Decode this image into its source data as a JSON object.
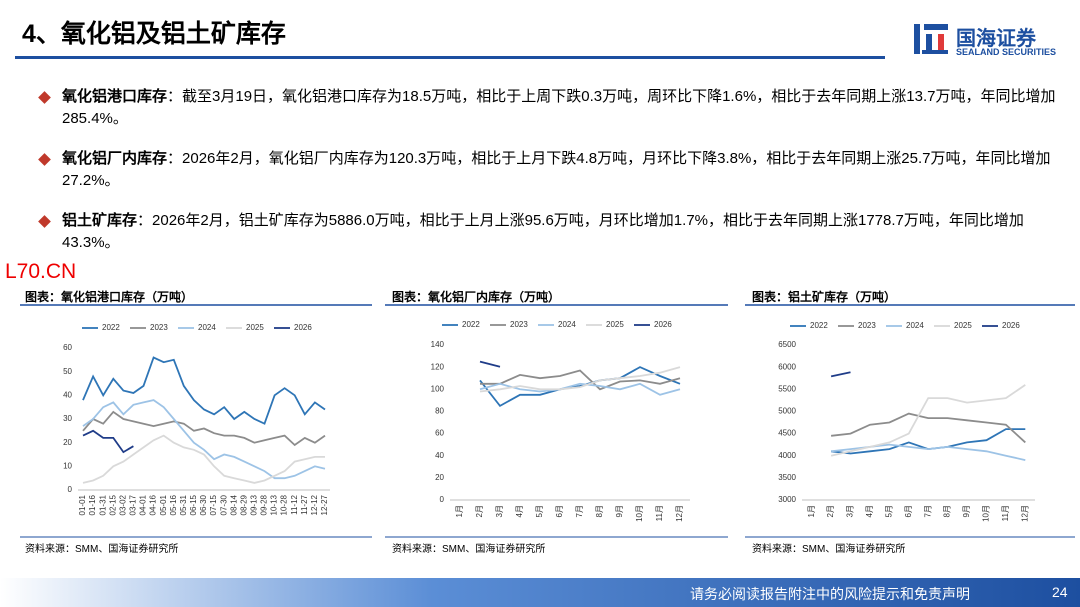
{
  "header": {
    "title": "4、氧化铝及铝土矿库存",
    "logo_cn": "国海证券",
    "logo_en": "SEALAND SECURITIES"
  },
  "bullets": [
    {
      "label": "氧化铝港口库存",
      "text": "：截至3月19日，氧化铝港口库存为18.5万吨，相比于上周下跌0.3万吨，周环比下降1.6%，相比于去年同期上涨13.7万吨，年同比增加285.4%。"
    },
    {
      "label": "氧化铝厂内库存",
      "text": "：2026年2月，氧化铝厂内库存为120.3万吨，相比于上月下跌4.8万吨，月环比下降3.8%，相比于去年同期上涨25.7万吨，年同比增加27.2%。"
    },
    {
      "label": "铝土矿库存",
      "text": "：2026年2月，铝土矿库存为5886.0万吨，相比于上月上涨95.6万吨，月环比增加1.7%，相比于去年同期上涨1778.7万吨，年同比增加43.3%。"
    }
  ],
  "watermark": "L70.CN",
  "footer": {
    "disclaimer": "请务必阅读报告附注中的风险提示和免责声明",
    "page": "24"
  },
  "chart_data": [
    {
      "type": "line",
      "title": "图表：氧化铝港口库存（万吨）",
      "source": "资料来源：SMM、国海证券研究所",
      "categories": [
        "01-01",
        "01-16",
        "01-31",
        "02-15",
        "03-02",
        "03-17",
        "04-01",
        "04-16",
        "05-01",
        "05-16",
        "05-31",
        "06-15",
        "06-30",
        "07-15",
        "07-30",
        "08-14",
        "08-29",
        "09-13",
        "09-28",
        "10-13",
        "10-28",
        "11-12",
        "11-27",
        "12-12",
        "12-27"
      ],
      "ylim": [
        0,
        60
      ],
      "yticks": [
        0,
        10,
        20,
        30,
        40,
        50,
        60
      ],
      "series": [
        {
          "name": "2022",
          "color": "#2e75b6",
          "values": [
            38,
            48,
            40,
            47,
            42,
            41,
            44,
            56,
            54,
            55,
            44,
            38,
            34,
            32,
            35,
            30,
            33,
            30,
            28,
            40,
            43,
            40,
            32,
            37,
            34
          ]
        },
        {
          "name": "2023",
          "color": "#8c8c8c",
          "values": [
            25,
            30,
            28,
            33,
            30,
            29,
            28,
            27,
            28,
            29,
            28,
            25,
            26,
            24,
            23,
            23,
            22,
            20,
            21,
            22,
            23,
            19,
            22,
            20,
            23
          ]
        },
        {
          "name": "2024",
          "color": "#9dc3e6",
          "values": [
            27,
            30,
            35,
            37,
            32,
            36,
            37,
            38,
            35,
            30,
            25,
            20,
            17,
            13,
            15,
            14,
            12,
            10,
            8,
            5,
            5,
            6,
            8,
            10,
            9
          ]
        },
        {
          "name": "2025",
          "color": "#d9d9d9",
          "values": [
            3,
            4,
            6,
            10,
            12,
            15,
            18,
            21,
            23,
            20,
            18,
            17,
            15,
            10,
            6,
            5,
            4,
            3,
            4,
            6,
            8,
            12,
            13,
            14,
            14
          ]
        },
        {
          "name": "2026",
          "color": "#1f3c88",
          "values": [
            23,
            25,
            22,
            22,
            16,
            18.5,
            null,
            null,
            null,
            null,
            null,
            null,
            null,
            null,
            null,
            null,
            null,
            null,
            null,
            null,
            null,
            null,
            null,
            null,
            null
          ]
        }
      ]
    },
    {
      "type": "line",
      "title": "图表：氧化铝厂内库存（万吨）",
      "source": "资料来源：SMM、国海证券研究所",
      "categories": [
        "1月",
        "2月",
        "3月",
        "4月",
        "5月",
        "6月",
        "7月",
        "8月",
        "9月",
        "10月",
        "11月",
        "12月"
      ],
      "ylim": [
        0,
        140
      ],
      "yticks": [
        0,
        20,
        40,
        60,
        80,
        100,
        120,
        140
      ],
      "series": [
        {
          "name": "2022",
          "color": "#2e75b6",
          "values": [
            null,
            108,
            85,
            95,
            95,
            100,
            103,
            108,
            110,
            120,
            112,
            105
          ]
        },
        {
          "name": "2023",
          "color": "#8c8c8c",
          "values": [
            null,
            105,
            105,
            113,
            110,
            112,
            117,
            100,
            107,
            108,
            105,
            110
          ]
        },
        {
          "name": "2024",
          "color": "#9dc3e6",
          "values": [
            null,
            100,
            105,
            100,
            98,
            100,
            105,
            103,
            100,
            105,
            95,
            100
          ]
        },
        {
          "name": "2025",
          "color": "#d9d9d9",
          "values": [
            null,
            98,
            100,
            103,
            100,
            100,
            102,
            108,
            110,
            112,
            115,
            120
          ]
        },
        {
          "name": "2026",
          "color": "#1f3c88",
          "values": [
            null,
            125,
            120.3,
            null,
            null,
            null,
            null,
            null,
            null,
            null,
            null,
            null
          ]
        }
      ]
    },
    {
      "type": "line",
      "title": "图表：铝土矿库存（万吨）",
      "source": "资料来源：SMM、国海证券研究所",
      "categories": [
        "1月",
        "2月",
        "3月",
        "4月",
        "5月",
        "6月",
        "7月",
        "8月",
        "9月",
        "10月",
        "11月",
        "12月"
      ],
      "ylim": [
        3000,
        6500
      ],
      "yticks": [
        3000,
        3500,
        4000,
        4500,
        5000,
        5500,
        6000,
        6500
      ],
      "series": [
        {
          "name": "2022",
          "color": "#2e75b6",
          "values": [
            null,
            4100,
            4050,
            4100,
            4150,
            4300,
            4150,
            4200,
            4300,
            4350,
            4600,
            4600
          ]
        },
        {
          "name": "2023",
          "color": "#8c8c8c",
          "values": [
            null,
            4450,
            4500,
            4700,
            4750,
            4950,
            4850,
            4850,
            4800,
            4750,
            4700,
            4300
          ]
        },
        {
          "name": "2024",
          "color": "#9dc3e6",
          "values": [
            null,
            4100,
            4150,
            4200,
            4250,
            4200,
            4150,
            4200,
            4150,
            4100,
            4000,
            3900
          ]
        },
        {
          "name": "2025",
          "color": "#d9d9d9",
          "values": [
            null,
            4000,
            4100,
            4200,
            4300,
            4500,
            5300,
            5300,
            5200,
            5250,
            5300,
            5600
          ]
        },
        {
          "name": "2026",
          "color": "#1f3c88",
          "values": [
            null,
            5790,
            5886,
            null,
            null,
            null,
            null,
            null,
            null,
            null,
            null,
            null
          ]
        }
      ]
    }
  ]
}
